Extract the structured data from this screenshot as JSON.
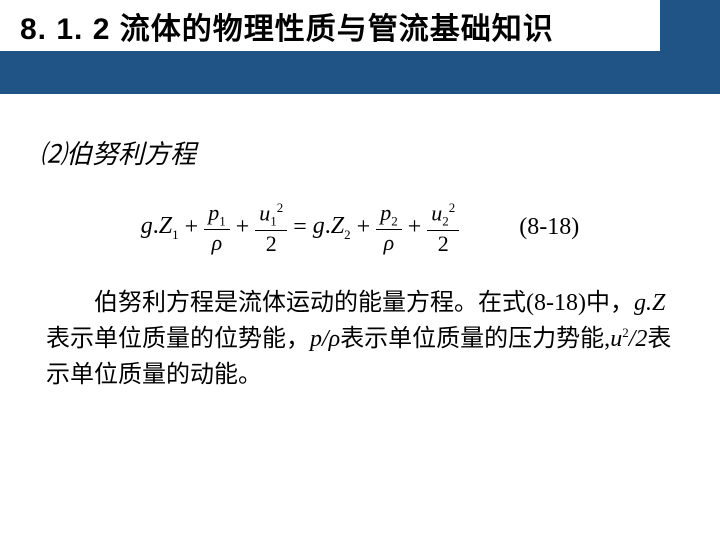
{
  "header": {
    "section_number": "8. 1. 2",
    "section_title": "流体的物理性质与管流基础知识",
    "band_color": "#205386"
  },
  "subheading": {
    "number": "⑵",
    "text": "伯努利方程"
  },
  "equation": {
    "label": "(8-18)",
    "lhs": {
      "term1": {
        "coef": "g",
        "dot": ".",
        "var": "Z",
        "sub": "1"
      },
      "term2": {
        "num_var": "p",
        "num_sub": "1",
        "den": "ρ"
      },
      "term3": {
        "num_var": "u",
        "num_sub": "1",
        "num_sup": "2",
        "den": "2"
      }
    },
    "rhs": {
      "term1": {
        "coef": "g",
        "dot": ".",
        "var": "Z",
        "sub": "2"
      },
      "term2": {
        "num_var": "p",
        "num_sub": "2",
        "den": "ρ"
      },
      "term3": {
        "num_var": "u",
        "num_sub": "2",
        "num_sup": "2",
        "den": "2"
      }
    }
  },
  "paragraph": {
    "s1": "伯努利方程是流体运动的能量方程。在式(8-18)中，",
    "t1": "g.Z",
    "s2": "表示单位质量的位势能，",
    "t2": "p/ρ",
    "s3": "表示单位质量的压力势能,",
    "t3": "u",
    "t3sup": "2",
    "t3b": "/2",
    "s4": "表示单位质量的动能。"
  }
}
